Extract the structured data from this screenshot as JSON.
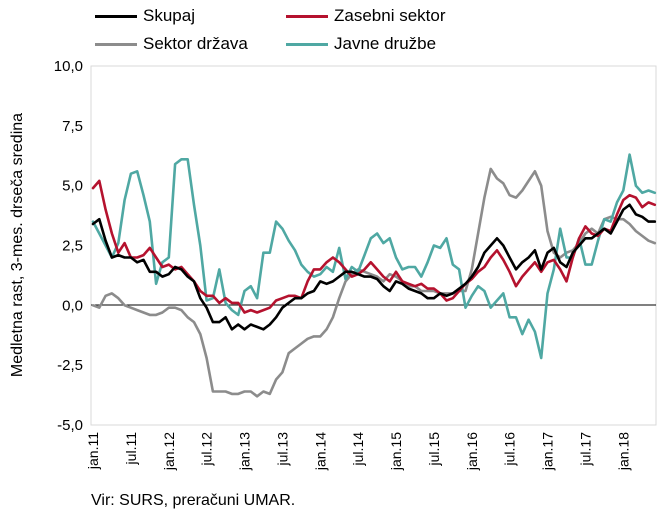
{
  "source_note": "Vir: SURS, preračuni UMAR.",
  "chart_data": {
    "type": "line",
    "title": "",
    "xlabel": "",
    "ylabel": "Medletna rast, 3-mes. drseča sredina",
    "ylim": [
      -5,
      10
    ],
    "yticks": [
      "-5,0",
      "-2,5",
      "0,0",
      "2,5",
      "5,0",
      "7,5",
      "10,0"
    ],
    "ytick_values": [
      -5,
      -2.5,
      0,
      2.5,
      5,
      7.5,
      10
    ],
    "x": [
      "2011-01",
      "2011-02",
      "2011-03",
      "2011-04",
      "2011-05",
      "2011-06",
      "2011-07",
      "2011-08",
      "2011-09",
      "2011-10",
      "2011-11",
      "2011-12",
      "2012-01",
      "2012-02",
      "2012-03",
      "2012-04",
      "2012-05",
      "2012-06",
      "2012-07",
      "2012-08",
      "2012-09",
      "2012-10",
      "2012-11",
      "2012-12",
      "2013-01",
      "2013-02",
      "2013-03",
      "2013-04",
      "2013-05",
      "2013-06",
      "2013-07",
      "2013-08",
      "2013-09",
      "2013-10",
      "2013-11",
      "2013-12",
      "2014-01",
      "2014-02",
      "2014-03",
      "2014-04",
      "2014-05",
      "2014-06",
      "2014-07",
      "2014-08",
      "2014-09",
      "2014-10",
      "2014-11",
      "2014-12",
      "2015-01",
      "2015-02",
      "2015-03",
      "2015-04",
      "2015-05",
      "2015-06",
      "2015-07",
      "2015-08",
      "2015-09",
      "2015-10",
      "2015-11",
      "2015-12",
      "2016-01",
      "2016-02",
      "2016-03",
      "2016-04",
      "2016-05",
      "2016-06",
      "2016-07",
      "2016-08",
      "2016-09",
      "2016-10",
      "2016-11",
      "2016-12",
      "2017-01",
      "2017-02",
      "2017-03",
      "2017-04",
      "2017-05",
      "2017-06",
      "2017-07",
      "2017-08",
      "2017-09",
      "2017-10",
      "2017-11",
      "2017-12",
      "2018-01",
      "2018-02",
      "2018-03",
      "2018-04",
      "2018-05",
      "2018-06"
    ],
    "x_tick_labels": [
      "jan.11",
      "jul.11",
      "jan.12",
      "jul.12",
      "jan.13",
      "jul.13",
      "jan.14",
      "jul.14",
      "jan.15",
      "jul.15",
      "jan.16",
      "jul.16",
      "jan.17",
      "jul.17",
      "jan.18"
    ],
    "x_tick_every": 6,
    "grid": false,
    "legend_position": "top",
    "series": [
      {
        "name": "Skupaj",
        "color": "#000000",
        "values": [
          3.4,
          3.6,
          2.7,
          2.0,
          2.1,
          2.0,
          2.0,
          1.8,
          1.9,
          1.4,
          1.4,
          1.2,
          1.3,
          1.6,
          1.5,
          1.2,
          1.0,
          0.3,
          -0.1,
          -0.7,
          -0.7,
          -0.5,
          -1.0,
          -0.8,
          -1.0,
          -0.8,
          -0.9,
          -1.0,
          -0.8,
          -0.5,
          -0.1,
          0.1,
          0.3,
          0.3,
          0.5,
          0.6,
          1.0,
          0.9,
          1.0,
          1.2,
          1.4,
          1.4,
          1.3,
          1.2,
          1.2,
          1.1,
          0.8,
          0.6,
          1.0,
          0.9,
          0.7,
          0.6,
          0.5,
          0.3,
          0.3,
          0.5,
          0.4,
          0.5,
          0.7,
          0.9,
          1.2,
          1.6,
          2.2,
          2.5,
          2.8,
          2.5,
          2.0,
          1.5,
          1.8,
          2.0,
          2.3,
          1.5,
          2.2,
          2.4,
          1.8,
          1.6,
          2.2,
          2.5,
          2.8,
          2.8,
          3.0,
          3.2,
          3.0,
          3.5,
          4.0,
          4.2,
          3.8,
          3.7,
          3.5,
          3.5
        ]
      },
      {
        "name": "Zasebni sektor",
        "color": "#b5122e",
        "values": [
          4.9,
          5.2,
          4.0,
          3.0,
          2.2,
          2.6,
          2.0,
          2.0,
          2.1,
          2.4,
          2.0,
          1.6,
          1.7,
          1.5,
          1.6,
          1.3,
          1.0,
          0.6,
          0.4,
          0.4,
          0.1,
          0.3,
          0.1,
          0.1,
          -0.3,
          -0.2,
          -0.3,
          -0.2,
          -0.1,
          0.2,
          0.3,
          0.4,
          0.4,
          0.3,
          1.0,
          1.5,
          1.5,
          1.8,
          2.0,
          1.8,
          1.5,
          1.2,
          1.3,
          1.5,
          1.8,
          1.5,
          1.2,
          1.0,
          1.4,
          1.0,
          0.9,
          0.8,
          0.9,
          0.7,
          0.7,
          0.5,
          0.2,
          0.3,
          0.6,
          0.9,
          1.1,
          1.4,
          1.6,
          2.0,
          2.3,
          1.9,
          1.4,
          0.8,
          1.2,
          1.5,
          1.8,
          1.4,
          1.8,
          1.9,
          1.5,
          1.0,
          2.0,
          2.8,
          3.3,
          3.0,
          2.9,
          3.2,
          3.1,
          3.8,
          4.4,
          4.6,
          4.5,
          4.1,
          4.3,
          4.2
        ]
      },
      {
        "name": "Sektor država",
        "color": "#8c8c8c",
        "values": [
          0.0,
          -0.1,
          0.4,
          0.5,
          0.3,
          0.0,
          -0.1,
          -0.2,
          -0.3,
          -0.4,
          -0.4,
          -0.3,
          -0.1,
          -0.1,
          -0.2,
          -0.5,
          -0.7,
          -1.2,
          -2.2,
          -3.6,
          -3.6,
          -3.6,
          -3.7,
          -3.7,
          -3.6,
          -3.6,
          -3.8,
          -3.6,
          -3.7,
          -3.1,
          -2.8,
          -2.0,
          -1.8,
          -1.6,
          -1.4,
          -1.3,
          -1.3,
          -1.0,
          -0.5,
          0.3,
          1.0,
          1.3,
          1.5,
          1.4,
          1.3,
          1.2,
          1.0,
          1.3,
          1.2,
          1.0,
          0.8,
          0.8,
          0.6,
          0.6,
          0.6,
          0.5,
          0.5,
          0.5,
          0.6,
          0.6,
          1.5,
          3.0,
          4.5,
          5.7,
          5.3,
          5.1,
          4.6,
          4.5,
          4.8,
          5.2,
          5.6,
          5.0,
          3.1,
          2.2,
          2.0,
          2.2,
          2.3,
          2.6,
          3.0,
          3.2,
          3.0,
          3.6,
          3.7,
          3.6,
          3.6,
          3.4,
          3.1,
          2.9,
          2.7,
          2.6
        ]
      },
      {
        "name": "Javne družbe",
        "color": "#4fa8a3",
        "values": [
          3.5,
          3.0,
          2.5,
          2.0,
          2.6,
          4.4,
          5.5,
          5.6,
          4.6,
          3.5,
          0.9,
          1.8,
          2.0,
          5.9,
          6.1,
          6.1,
          4.2,
          2.5,
          0.2,
          0.3,
          1.5,
          0.1,
          -0.2,
          -0.4,
          0.6,
          0.8,
          0.3,
          2.2,
          2.2,
          3.5,
          3.2,
          2.7,
          2.3,
          1.7,
          1.4,
          1.2,
          1.3,
          1.6,
          1.4,
          2.4,
          1.1,
          1.6,
          1.4,
          2.1,
          2.8,
          3.0,
          2.6,
          2.8,
          2.0,
          1.5,
          1.6,
          1.6,
          1.2,
          1.8,
          2.5,
          2.4,
          2.8,
          1.7,
          1.5,
          -0.1,
          0.4,
          0.8,
          0.6,
          -0.1,
          0.2,
          0.5,
          -0.5,
          -0.5,
          -1.2,
          -0.6,
          -1.1,
          -2.2,
          0.5,
          1.5,
          3.2,
          2.0,
          2.0,
          2.8,
          1.7,
          1.7,
          2.7,
          3.6,
          3.5,
          4.3,
          4.8,
          6.3,
          5.0,
          4.7,
          4.8,
          4.7
        ]
      }
    ]
  }
}
